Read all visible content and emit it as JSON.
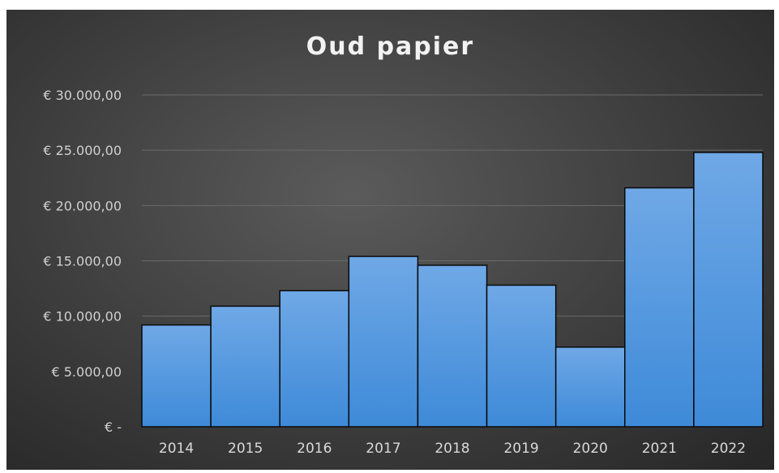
{
  "chart_data": {
    "type": "bar",
    "title": "Oud papier",
    "xlabel": "",
    "ylabel": "",
    "categories": [
      "2014",
      "2015",
      "2016",
      "2017",
      "2018",
      "2019",
      "2020",
      "2021",
      "2022"
    ],
    "values": [
      9200,
      10900,
      12300,
      15400,
      14600,
      12800,
      7200,
      21600,
      24800
    ],
    "ylim": [
      0,
      30000
    ],
    "y_ticks": [
      0,
      5000,
      10000,
      15000,
      20000,
      25000,
      30000
    ],
    "y_tick_labels": [
      "€ -",
      "€ 5.000,00",
      "€ 10.000,00",
      "€ 15.000,00",
      "€ 20.000,00",
      "€ 25.000,00",
      "€ 30.000,00"
    ],
    "grid": true,
    "legend": "none",
    "colors": {
      "bar_top": "#6fa8e6",
      "bar_bottom": "#3e8ad8",
      "bar_stroke": "#0a0a0a",
      "grid": "#6a6a6a",
      "axis": "#8a8a8a"
    }
  }
}
